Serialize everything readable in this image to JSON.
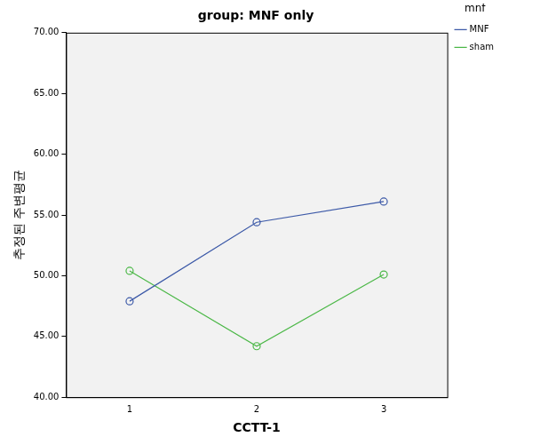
{
  "chart_data": {
    "type": "line",
    "title": "group: MNF only",
    "x_label": "CCTT-1",
    "y_label": "추정된 주변평균",
    "legend_title": "mnf",
    "categories": [
      "1",
      "2",
      "3"
    ],
    "series": [
      {
        "name": "MNF",
        "color": "#3d5aa8",
        "values": [
          47.9,
          54.4,
          56.1
        ],
        "marker": "circle"
      },
      {
        "name": "sham",
        "color": "#4cb848",
        "values": [
          50.4,
          44.2,
          50.1
        ],
        "marker": "circle"
      }
    ],
    "ylim": [
      40,
      70
    ],
    "yticks": [
      {
        "value": 40,
        "label": "40.00"
      },
      {
        "value": 45,
        "label": "45.00"
      },
      {
        "value": 50,
        "label": "50.00"
      },
      {
        "value": 55,
        "label": "55.00"
      },
      {
        "value": 60,
        "label": "60.00"
      },
      {
        "value": 65,
        "label": "65.00"
      },
      {
        "value": 70,
        "label": "70.00"
      }
    ],
    "grid": false,
    "legend": "upper right"
  }
}
